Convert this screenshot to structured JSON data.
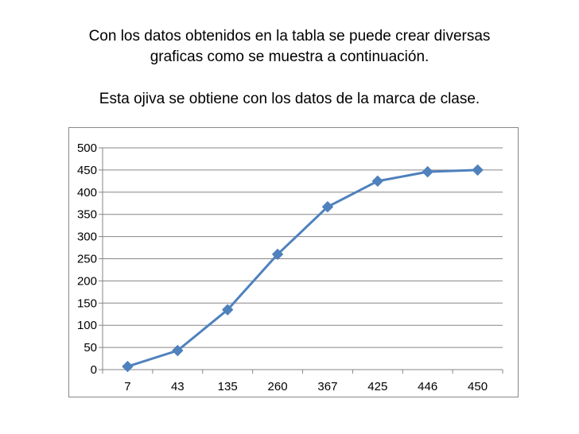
{
  "slide": {
    "line1": "Con los datos obtenidos en la tabla se puede crear diversas",
    "line2": "graficas como se muestra a continuación.",
    "line3": "Esta ojiva se obtiene con los datos de la marca de clase."
  },
  "colors": {
    "series": "#4F81BD",
    "grid": "#868686",
    "frame": "#888888"
  },
  "chart_data": {
    "type": "line",
    "categories": [
      "7",
      "43",
      "135",
      "260",
      "367",
      "425",
      "446",
      "450"
    ],
    "series": [
      {
        "values": [
          7,
          43,
          135,
          260,
          367,
          425,
          446,
          450
        ]
      }
    ],
    "y_ticks": [
      "0",
      "50",
      "100",
      "150",
      "200",
      "250",
      "300",
      "350",
      "400",
      "450",
      "500"
    ],
    "ylim": [
      0,
      500
    ],
    "marker": "diamond",
    "grid": true,
    "legend": "none"
  }
}
